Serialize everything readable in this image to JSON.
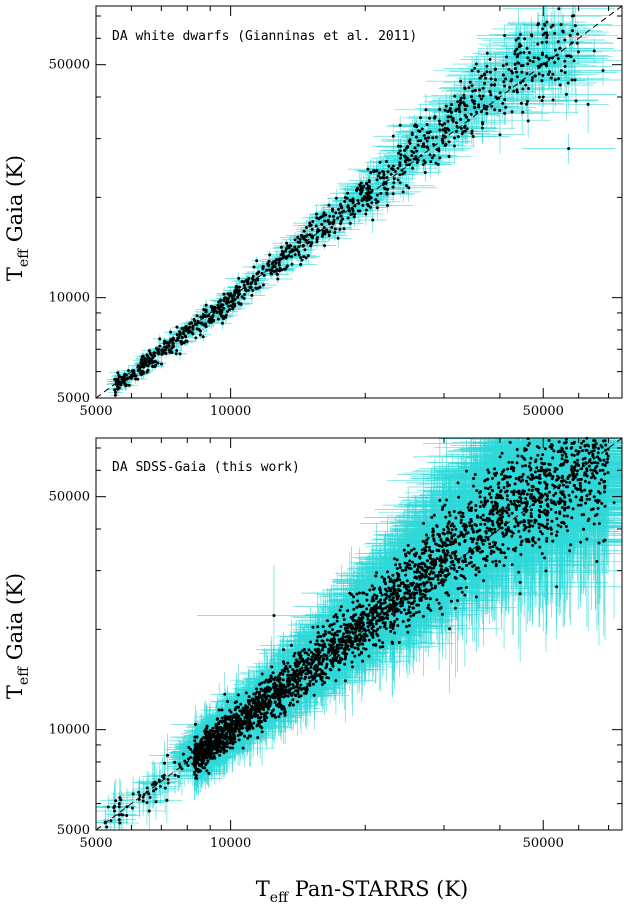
{
  "chart_data": [
    {
      "type": "scatter",
      "panel_label": "DA white dwarfs (Gianninas et al. 2011)",
      "xscale": "log",
      "yscale": "log",
      "xlim": [
        5000,
        75000
      ],
      "ylim": [
        5000,
        75000
      ],
      "x_ticklabels": [
        "5000",
        "10000",
        "50000"
      ],
      "y_ticklabels": [
        "5000",
        "10000",
        "50000"
      ],
      "ylabel_main": "T",
      "ylabel_sub": "eff",
      "ylabel_rest": " Gaia (K)",
      "one_to_one_line": true,
      "marker_color": "#000000",
      "errorbar_color": "#2fd8d8",
      "n_points": 1100,
      "scatter_dex": 0.025,
      "trend": [
        {
          "x": 5500,
          "y": 5400
        },
        {
          "x": 7000,
          "y": 6900
        },
        {
          "x": 10000,
          "y": 9800
        },
        {
          "x": 14000,
          "y": 14000
        },
        {
          "x": 20000,
          "y": 20500
        },
        {
          "x": 30000,
          "y": 32000
        },
        {
          "x": 40000,
          "y": 45000
        },
        {
          "x": 60000,
          "y": 60000
        }
      ],
      "notable_points": [
        {
          "x": 44000,
          "y": 60000
        },
        {
          "x": 46000,
          "y": 56000
        },
        {
          "x": 57000,
          "y": 28000
        },
        {
          "x": 63000,
          "y": 38000
        },
        {
          "x": 65000,
          "y": 55000
        },
        {
          "x": 58000,
          "y": 45000
        },
        {
          "x": 45000,
          "y": 36000
        },
        {
          "x": 50000,
          "y": 40000
        },
        {
          "x": 68000,
          "y": 48000
        }
      ]
    },
    {
      "type": "scatter",
      "panel_label": "DA SDSS-Gaia (this work)",
      "xscale": "log",
      "yscale": "log",
      "xlim": [
        5000,
        75000
      ],
      "ylim": [
        5000,
        75000
      ],
      "x_ticklabels": [
        "5000",
        "10000",
        "50000"
      ],
      "y_ticklabels": [
        "5000",
        "10000",
        "50000"
      ],
      "ylabel_main": "T",
      "ylabel_sub": "eff",
      "ylabel_rest": " Gaia (K)",
      "xlabel_main": "T",
      "xlabel_sub": "eff",
      "xlabel_rest": " Pan-STARRS (K)",
      "one_to_one_line": true,
      "marker_color": "#000000",
      "errorbar_color": "#2fd8d8",
      "n_points": 3200,
      "scatter_dex": 0.04,
      "trend": [
        {
          "x": 5200,
          "y": 5200
        },
        {
          "x": 7000,
          "y": 7000
        },
        {
          "x": 10000,
          "y": 10000
        },
        {
          "x": 15000,
          "y": 15500
        },
        {
          "x": 20000,
          "y": 21000
        },
        {
          "x": 30000,
          "y": 33000
        },
        {
          "x": 40000,
          "y": 45000
        },
        {
          "x": 70000,
          "y": 70000
        }
      ],
      "notable_points": [
        {
          "x": 12500,
          "y": 22000
        },
        {
          "x": 50000,
          "y": 45000
        },
        {
          "x": 55000,
          "y": 70000
        },
        {
          "x": 60000,
          "y": 62000
        },
        {
          "x": 68000,
          "y": 60000
        },
        {
          "x": 65000,
          "y": 50000
        },
        {
          "x": 45000,
          "y": 56000
        },
        {
          "x": 72000,
          "y": 48000
        }
      ]
    }
  ]
}
